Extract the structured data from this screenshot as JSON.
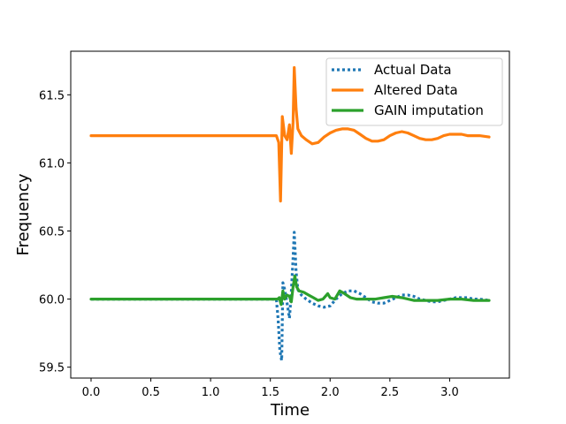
{
  "chart_data": {
    "type": "line",
    "title": "",
    "xlabel": "Time",
    "ylabel": "Frequency",
    "xlim": [
      -0.17,
      3.5
    ],
    "ylim": [
      59.42,
      61.82
    ],
    "x_ticks": [
      0.0,
      0.5,
      1.0,
      1.5,
      2.0,
      2.5,
      3.0
    ],
    "x_tick_labels": [
      "0.0",
      "0.5",
      "1.0",
      "1.5",
      "2.0",
      "2.5",
      "3.0"
    ],
    "y_ticks": [
      59.5,
      60.0,
      60.5,
      61.0,
      61.5
    ],
    "y_tick_labels": [
      "59.5",
      "60.0",
      "60.5",
      "61.0",
      "61.5"
    ],
    "grid": false,
    "legend_position": "top-right",
    "series": [
      {
        "name": "Actual Data",
        "color": "#1f77b4",
        "style": "dotted",
        "points": [
          [
            0.0,
            60.0
          ],
          [
            1.55,
            60.0
          ],
          [
            1.565,
            59.85
          ],
          [
            1.58,
            59.62
          ],
          [
            1.595,
            59.55
          ],
          [
            1.605,
            60.12
          ],
          [
            1.62,
            60.07
          ],
          [
            1.64,
            59.97
          ],
          [
            1.66,
            59.86
          ],
          [
            1.675,
            60.05
          ],
          [
            1.69,
            60.3
          ],
          [
            1.7,
            60.49
          ],
          [
            1.715,
            60.2
          ],
          [
            1.73,
            60.07
          ],
          [
            1.76,
            60.03
          ],
          [
            1.8,
            60.0
          ],
          [
            1.85,
            59.97
          ],
          [
            1.9,
            59.95
          ],
          [
            1.95,
            59.94
          ],
          [
            2.0,
            59.95
          ],
          [
            2.05,
            60.0
          ],
          [
            2.1,
            60.04
          ],
          [
            2.15,
            60.06
          ],
          [
            2.2,
            60.06
          ],
          [
            2.25,
            60.04
          ],
          [
            2.3,
            60.01
          ],
          [
            2.35,
            59.98
          ],
          [
            2.4,
            59.97
          ],
          [
            2.45,
            59.97
          ],
          [
            2.5,
            59.99
          ],
          [
            2.55,
            60.01
          ],
          [
            2.6,
            60.03
          ],
          [
            2.65,
            60.03
          ],
          [
            2.7,
            60.02
          ],
          [
            2.75,
            60.0
          ],
          [
            2.8,
            59.99
          ],
          [
            2.85,
            59.98
          ],
          [
            2.9,
            59.98
          ],
          [
            2.95,
            59.99
          ],
          [
            3.0,
            60.0
          ],
          [
            3.05,
            60.01
          ],
          [
            3.1,
            60.01
          ],
          [
            3.15,
            60.01
          ],
          [
            3.2,
            60.0
          ],
          [
            3.25,
            60.0
          ],
          [
            3.33,
            59.99
          ]
        ]
      },
      {
        "name": "Altered Data",
        "color": "#ff7f0e",
        "style": "solid",
        "points": [
          [
            0.0,
            61.2
          ],
          [
            1.55,
            61.2
          ],
          [
            1.57,
            61.15
          ],
          [
            1.585,
            60.72
          ],
          [
            1.6,
            61.34
          ],
          [
            1.62,
            61.2
          ],
          [
            1.64,
            61.17
          ],
          [
            1.66,
            61.28
          ],
          [
            1.675,
            61.07
          ],
          [
            1.69,
            61.3
          ],
          [
            1.7,
            61.7
          ],
          [
            1.715,
            61.4
          ],
          [
            1.73,
            61.25
          ],
          [
            1.76,
            61.2
          ],
          [
            1.8,
            61.17
          ],
          [
            1.85,
            61.14
          ],
          [
            1.9,
            61.15
          ],
          [
            1.95,
            61.19
          ],
          [
            2.0,
            61.22
          ],
          [
            2.05,
            61.24
          ],
          [
            2.1,
            61.25
          ],
          [
            2.15,
            61.25
          ],
          [
            2.2,
            61.24
          ],
          [
            2.25,
            61.21
          ],
          [
            2.3,
            61.18
          ],
          [
            2.35,
            61.16
          ],
          [
            2.4,
            61.16
          ],
          [
            2.45,
            61.17
          ],
          [
            2.5,
            61.2
          ],
          [
            2.55,
            61.22
          ],
          [
            2.6,
            61.23
          ],
          [
            2.65,
            61.22
          ],
          [
            2.7,
            61.2
          ],
          [
            2.75,
            61.18
          ],
          [
            2.8,
            61.17
          ],
          [
            2.85,
            61.17
          ],
          [
            2.9,
            61.18
          ],
          [
            2.95,
            61.2
          ],
          [
            3.0,
            61.21
          ],
          [
            3.05,
            61.21
          ],
          [
            3.1,
            61.21
          ],
          [
            3.15,
            61.2
          ],
          [
            3.2,
            61.2
          ],
          [
            3.25,
            61.2
          ],
          [
            3.33,
            61.19
          ]
        ]
      },
      {
        "name": "GAIN imputation",
        "color": "#2ca02c",
        "style": "solid",
        "points": [
          [
            0.0,
            60.0
          ],
          [
            1.56,
            60.0
          ],
          [
            1.575,
            60.01
          ],
          [
            1.59,
            59.96
          ],
          [
            1.605,
            60.06
          ],
          [
            1.62,
            60.0
          ],
          [
            1.64,
            60.03
          ],
          [
            1.66,
            60.02
          ],
          [
            1.675,
            59.98
          ],
          [
            1.69,
            60.09
          ],
          [
            1.705,
            60.17
          ],
          [
            1.72,
            60.09
          ],
          [
            1.74,
            60.06
          ],
          [
            1.78,
            60.05
          ],
          [
            1.82,
            60.03
          ],
          [
            1.86,
            60.01
          ],
          [
            1.9,
            59.99
          ],
          [
            1.94,
            60.0
          ],
          [
            1.98,
            60.04
          ],
          [
            2.0,
            60.01
          ],
          [
            2.04,
            60.0
          ],
          [
            2.08,
            60.06
          ],
          [
            2.12,
            60.04
          ],
          [
            2.17,
            60.01
          ],
          [
            2.22,
            60.0
          ],
          [
            2.3,
            60.0
          ],
          [
            2.38,
            60.0
          ],
          [
            2.45,
            60.01
          ],
          [
            2.52,
            60.02
          ],
          [
            2.6,
            60.01
          ],
          [
            2.7,
            59.99
          ],
          [
            2.8,
            59.99
          ],
          [
            2.9,
            59.99
          ],
          [
            3.0,
            60.0
          ],
          [
            3.1,
            60.0
          ],
          [
            3.2,
            59.99
          ],
          [
            3.33,
            59.99
          ]
        ]
      }
    ]
  }
}
